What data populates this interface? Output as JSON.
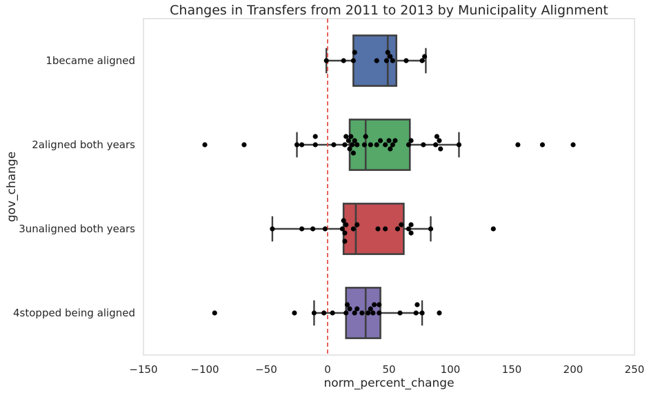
{
  "chart_data": {
    "type": "box",
    "title": "Changes in Transfers from 2011 to 2013 by Municipality Alignment",
    "xlabel": "norm_percent_change",
    "ylabel": "gov_change",
    "xlim": [
      -150,
      250
    ],
    "xticks": [
      -150,
      -100,
      -50,
      0,
      50,
      100,
      150,
      200,
      250
    ],
    "xtick_labels": [
      "−150",
      "−100",
      "−50",
      "0",
      "50",
      "100",
      "150",
      "200",
      "250"
    ],
    "grid": false,
    "reference_line": {
      "x": 0,
      "style": "dashed",
      "color": "#e8504a"
    },
    "point_color": "#000000",
    "categories": [
      {
        "label": "1became aligned",
        "color": "#5471a8",
        "box": {
          "whisker_low": -1,
          "q1": 21,
          "median": 49,
          "q3": 56,
          "whisker_high": 80
        },
        "points": [
          -1,
          13,
          21,
          22,
          40,
          48,
          49,
          51,
          53,
          64,
          77,
          79
        ]
      },
      {
        "label": "2aligned both years",
        "color": "#55a868",
        "box": {
          "whisker_low": -25,
          "q1": 18,
          "median": 31,
          "q3": 67,
          "whisker_high": 107
        },
        "points": [
          -100,
          -68,
          -25,
          -21,
          -10,
          -10,
          5,
          14,
          15,
          17,
          18,
          19,
          20,
          21,
          22,
          24,
          30,
          31,
          35,
          40,
          43,
          47,
          50,
          51,
          53,
          55,
          66,
          68,
          78,
          88,
          89,
          91,
          92,
          107,
          155,
          175,
          200
        ]
      },
      {
        "label": "3unaligned both years",
        "color": "#c44e52",
        "box": {
          "whisker_low": -45,
          "q1": 13,
          "median": 23,
          "q3": 62,
          "whisker_high": 84
        },
        "points": [
          -45,
          -21,
          -12,
          -2,
          12,
          13,
          14,
          14,
          15,
          21,
          24,
          41,
          47,
          57,
          60,
          66,
          68,
          68,
          84,
          135
        ]
      },
      {
        "label": "4stopped being aligned",
        "color": "#8172b2",
        "box": {
          "whisker_low": -11,
          "q1": 15,
          "median": 31,
          "q3": 43,
          "whisker_high": 77
        },
        "points": [
          -92,
          -27,
          -11,
          -3,
          4,
          15,
          16,
          18,
          22,
          24,
          28,
          33,
          35,
          37,
          38,
          42,
          42,
          59,
          72,
          73,
          77,
          91
        ]
      }
    ]
  }
}
